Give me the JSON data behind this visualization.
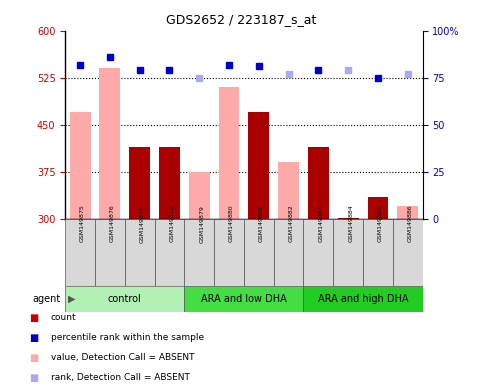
{
  "title": "GDS2652 / 223187_s_at",
  "samples": [
    "GSM149875",
    "GSM149876",
    "GSM149877",
    "GSM149878",
    "GSM149879",
    "GSM149880",
    "GSM149881",
    "GSM149882",
    "GSM149883",
    "GSM149884",
    "GSM149885",
    "GSM149886"
  ],
  "groups": [
    {
      "label": "control",
      "color": "#b3f0b3",
      "start": 0,
      "end": 4
    },
    {
      "label": "ARA and low DHA",
      "color": "#44dd44",
      "start": 4,
      "end": 8
    },
    {
      "label": "ARA and high DHA",
      "color": "#22cc22",
      "start": 8,
      "end": 12
    }
  ],
  "bar_values": [
    470,
    540,
    415,
    415,
    375,
    510,
    470,
    390,
    415,
    302,
    335,
    320
  ],
  "bar_colors": [
    "#ffaaaa",
    "#ffaaaa",
    "#aa0000",
    "#aa0000",
    "#ffaaaa",
    "#ffaaaa",
    "#aa0000",
    "#ffaaaa",
    "#aa0000",
    "#aa0000",
    "#aa0000",
    "#ffaaaa"
  ],
  "rank_values": [
    82,
    86,
    79,
    79,
    75,
    82,
    81,
    77,
    79,
    79,
    75,
    77
  ],
  "rank_colors": [
    "#0000cc",
    "#0000cc",
    "#0000cc",
    "#0000cc",
    "#aaaaee",
    "#0000cc",
    "#0000cc",
    "#aaaaee",
    "#0000cc",
    "#aaaaee",
    "#0000cc",
    "#aaaaee"
  ],
  "ylim_left": [
    300,
    600
  ],
  "ylim_right": [
    0,
    100
  ],
  "yticks_left": [
    300,
    375,
    450,
    525,
    600
  ],
  "yticks_right": [
    0,
    25,
    50,
    75,
    100
  ],
  "ylabel_left_color": "#cc0000",
  "ylabel_right_color": "#0000cc",
  "dotted_lines": [
    375,
    450,
    525
  ],
  "agent_label": "agent",
  "legend_items": [
    {
      "color": "#cc0000",
      "label": "count"
    },
    {
      "color": "#0000cc",
      "label": "percentile rank within the sample"
    },
    {
      "color": "#ffaaaa",
      "label": "value, Detection Call = ABSENT"
    },
    {
      "color": "#aaaaee",
      "label": "rank, Detection Call = ABSENT"
    }
  ]
}
